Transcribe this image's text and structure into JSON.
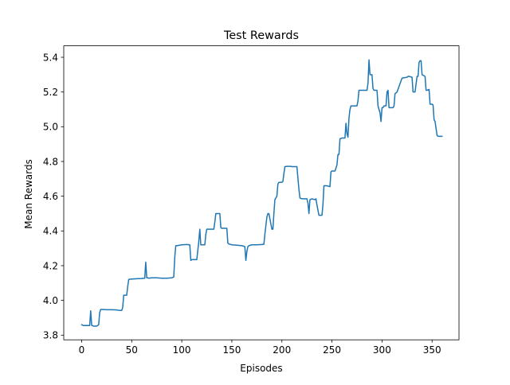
{
  "chart_data": {
    "type": "line",
    "title": "Test Rewards",
    "xlabel": "Episodes",
    "ylabel": "Mean Rewards",
    "xlim": [
      -17.9,
      376.9
    ],
    "ylim": [
      3.773,
      5.466
    ],
    "xticks": [
      0,
      50,
      100,
      150,
      200,
      250,
      300,
      350
    ],
    "xtick_labels": [
      "0",
      "50",
      "100",
      "150",
      "200",
      "250",
      "300",
      "350"
    ],
    "yticks": [
      3.8,
      4.0,
      4.2,
      4.4,
      4.6,
      4.8,
      5.0,
      5.2,
      5.4
    ],
    "ytick_labels": [
      "3.8",
      "4.0",
      "4.2",
      "4.4",
      "4.6",
      "4.8",
      "5.0",
      "5.2",
      "5.4"
    ],
    "grid": false,
    "series": [
      {
        "color": "#1f77b4",
        "x": [
          0,
          2,
          5,
          8,
          9,
          10,
          11,
          12,
          15,
          17,
          18,
          19,
          20,
          25,
          30,
          35,
          38,
          40,
          41,
          42,
          45,
          46,
          47,
          48,
          55,
          60,
          63,
          64,
          65,
          66,
          67,
          70,
          75,
          80,
          85,
          90,
          92,
          93,
          94,
          95,
          100,
          105,
          108,
          109,
          110,
          115,
          117,
          118,
          119,
          120,
          123,
          124,
          125,
          130,
          132,
          133,
          134,
          138,
          139,
          140,
          145,
          146,
          147,
          150,
          155,
          160,
          163,
          164,
          165,
          166,
          167,
          170,
          175,
          180,
          182,
          183,
          185,
          186,
          187,
          190,
          191,
          192,
          193,
          195,
          196,
          197,
          200,
          201,
          202,
          203,
          205,
          208,
          209,
          210,
          215,
          217,
          218,
          220,
          225,
          226,
          227,
          228,
          230,
          233,
          234,
          235,
          237,
          238,
          240,
          241,
          242,
          245,
          248,
          249,
          250,
          253,
          255,
          256,
          257,
          258,
          260,
          263,
          264,
          265,
          266,
          267,
          268,
          269,
          270,
          275,
          276,
          277,
          280,
          284,
          285,
          286,
          287,
          288,
          290,
          291,
          292,
          295,
          296,
          297,
          298,
          299,
          300,
          301,
          302,
          304,
          305,
          306,
          307,
          310,
          311,
          312,
          313,
          315,
          320,
          325,
          326,
          327,
          330,
          331,
          332,
          333,
          335,
          336,
          337,
          338,
          339,
          340,
          343,
          344,
          345,
          347,
          348,
          350,
          351,
          352,
          353,
          355,
          356,
          360
        ],
        "y": [
          3.86,
          3.855,
          3.856,
          3.855,
          3.94,
          3.856,
          3.854,
          3.852,
          3.852,
          3.86,
          3.93,
          3.948,
          3.948,
          3.946,
          3.946,
          3.945,
          3.942,
          3.942,
          3.96,
          4.03,
          4.03,
          4.08,
          4.12,
          4.122,
          4.125,
          4.126,
          4.128,
          4.22,
          4.13,
          4.13,
          4.128,
          4.13,
          4.13,
          4.128,
          4.128,
          4.13,
          4.135,
          4.25,
          4.315,
          4.315,
          4.32,
          4.322,
          4.32,
          4.23,
          4.235,
          4.235,
          4.34,
          4.41,
          4.32,
          4.32,
          4.32,
          4.38,
          4.41,
          4.41,
          4.41,
          4.45,
          4.5,
          4.5,
          4.42,
          4.415,
          4.415,
          4.33,
          4.325,
          4.32,
          4.318,
          4.315,
          4.31,
          4.23,
          4.28,
          4.31,
          4.315,
          4.32,
          4.32,
          4.322,
          4.323,
          4.38,
          4.48,
          4.5,
          4.5,
          4.41,
          4.41,
          4.5,
          4.58,
          4.6,
          4.67,
          4.68,
          4.68,
          4.685,
          4.73,
          4.77,
          4.772,
          4.772,
          4.772,
          4.77,
          4.77,
          4.64,
          4.59,
          4.585,
          4.585,
          4.56,
          4.5,
          4.58,
          4.585,
          4.58,
          4.585,
          4.55,
          4.49,
          4.49,
          4.49,
          4.55,
          4.66,
          4.66,
          4.655,
          4.74,
          4.745,
          4.745,
          4.78,
          4.84,
          4.84,
          4.93,
          4.935,
          4.935,
          5.02,
          4.96,
          4.94,
          5.05,
          5.1,
          5.12,
          5.12,
          5.12,
          5.15,
          5.21,
          5.21,
          5.21,
          5.21,
          5.25,
          5.385,
          5.3,
          5.3,
          5.22,
          5.21,
          5.21,
          5.12,
          5.1,
          5.08,
          5.03,
          5.11,
          5.11,
          5.12,
          5.12,
          5.2,
          5.21,
          5.11,
          5.11,
          5.11,
          5.12,
          5.19,
          5.2,
          5.28,
          5.285,
          5.29,
          5.29,
          5.285,
          5.2,
          5.2,
          5.2,
          5.29,
          5.29,
          5.37,
          5.38,
          5.38,
          5.3,
          5.29,
          5.21,
          5.21,
          5.215,
          5.13,
          5.13,
          5.125,
          5.04,
          5.03,
          4.95,
          4.945,
          4.945
        ]
      }
    ]
  }
}
